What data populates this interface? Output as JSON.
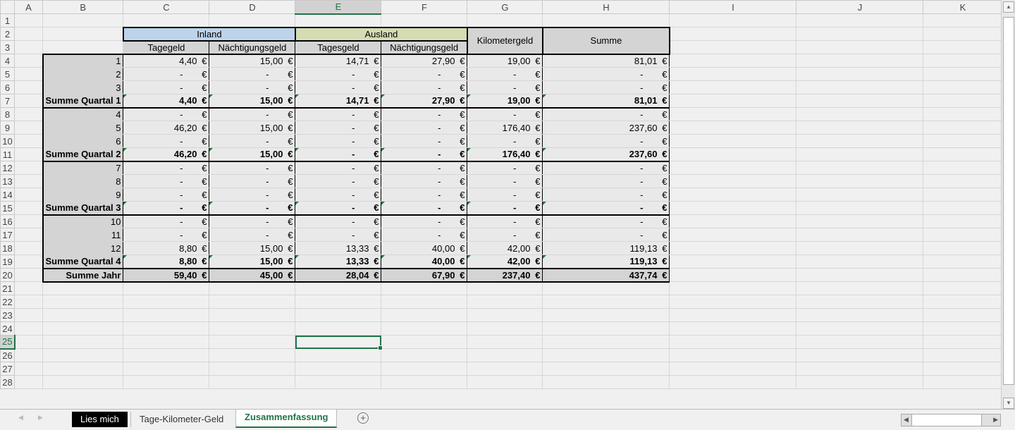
{
  "columns": [
    "A",
    "B",
    "C",
    "D",
    "E",
    "F",
    "G",
    "H",
    "I",
    "J",
    "K"
  ],
  "selected_cell": "E25",
  "currency": "€",
  "headers": {
    "inland": "Inland",
    "ausland": "Ausland",
    "tagegeld": "Tagegeld",
    "naechtigung1": "Nächtigungsgeld",
    "tagesgeld": "Tagesgeld",
    "naechtigung2": "Nächtigungsgeld",
    "kilometergeld": "Kilometergeld",
    "summe": "Summe"
  },
  "rows": [
    {
      "label": "1",
      "values": [
        "4,40",
        "15,00",
        "14,71",
        "27,90",
        "19,00",
        "81,01"
      ]
    },
    {
      "label": "2",
      "values": [
        "-",
        "-",
        "-",
        "-",
        "-",
        "-"
      ]
    },
    {
      "label": "3",
      "values": [
        "-",
        "-",
        "-",
        "-",
        "-",
        "-"
      ]
    },
    {
      "label": "Summe Quartal 1",
      "sum": true,
      "values": [
        "4,40",
        "15,00",
        "14,71",
        "27,90",
        "19,00",
        "81,01"
      ]
    },
    {
      "label": "4",
      "values": [
        "-",
        "-",
        "-",
        "-",
        "-",
        "-"
      ]
    },
    {
      "label": "5",
      "values": [
        "46,20",
        "15,00",
        "-",
        "-",
        "176,40",
        "237,60"
      ]
    },
    {
      "label": "6",
      "values": [
        "-",
        "-",
        "-",
        "-",
        "-",
        "-"
      ]
    },
    {
      "label": "Summe Quartal 2",
      "sum": true,
      "values": [
        "46,20",
        "15,00",
        "-",
        "-",
        "176,40",
        "237,60"
      ]
    },
    {
      "label": "7",
      "values": [
        "-",
        "-",
        "-",
        "-",
        "-",
        "-"
      ]
    },
    {
      "label": "8",
      "values": [
        "-",
        "-",
        "-",
        "-",
        "-",
        "-"
      ]
    },
    {
      "label": "9",
      "values": [
        "-",
        "-",
        "-",
        "-",
        "-",
        "-"
      ]
    },
    {
      "label": "Summe Quartal 3",
      "sum": true,
      "values": [
        "-",
        "-",
        "-",
        "-",
        "-",
        "-"
      ]
    },
    {
      "label": "10",
      "values": [
        "-",
        "-",
        "-",
        "-",
        "-",
        "-"
      ]
    },
    {
      "label": "11",
      "values": [
        "-",
        "-",
        "-",
        "-",
        "-",
        "-"
      ]
    },
    {
      "label": "12",
      "values": [
        "8,80",
        "15,00",
        "13,33",
        "40,00",
        "42,00",
        "119,13"
      ]
    },
    {
      "label": "Summe Quartal 4",
      "sum": true,
      "values": [
        "8,80",
        "15,00",
        "13,33",
        "40,00",
        "42,00",
        "119,13"
      ]
    },
    {
      "label": "Summe Jahr",
      "sum": true,
      "year": true,
      "values": [
        "59,40",
        "45,00",
        "28,04",
        "67,90",
        "237,40",
        "437,74"
      ]
    }
  ],
  "tabs": [
    {
      "label": "Lies mich",
      "style": "black"
    },
    {
      "label": "Tage-Kilometer-Geld"
    },
    {
      "label": "Zusammenfassung",
      "active": true
    }
  ],
  "colors": {
    "accent": "#217346",
    "inland": "#bdd3eb",
    "ausland": "#d4dcb4"
  },
  "icons": {
    "add_sheet": "plus-circle-icon"
  }
}
